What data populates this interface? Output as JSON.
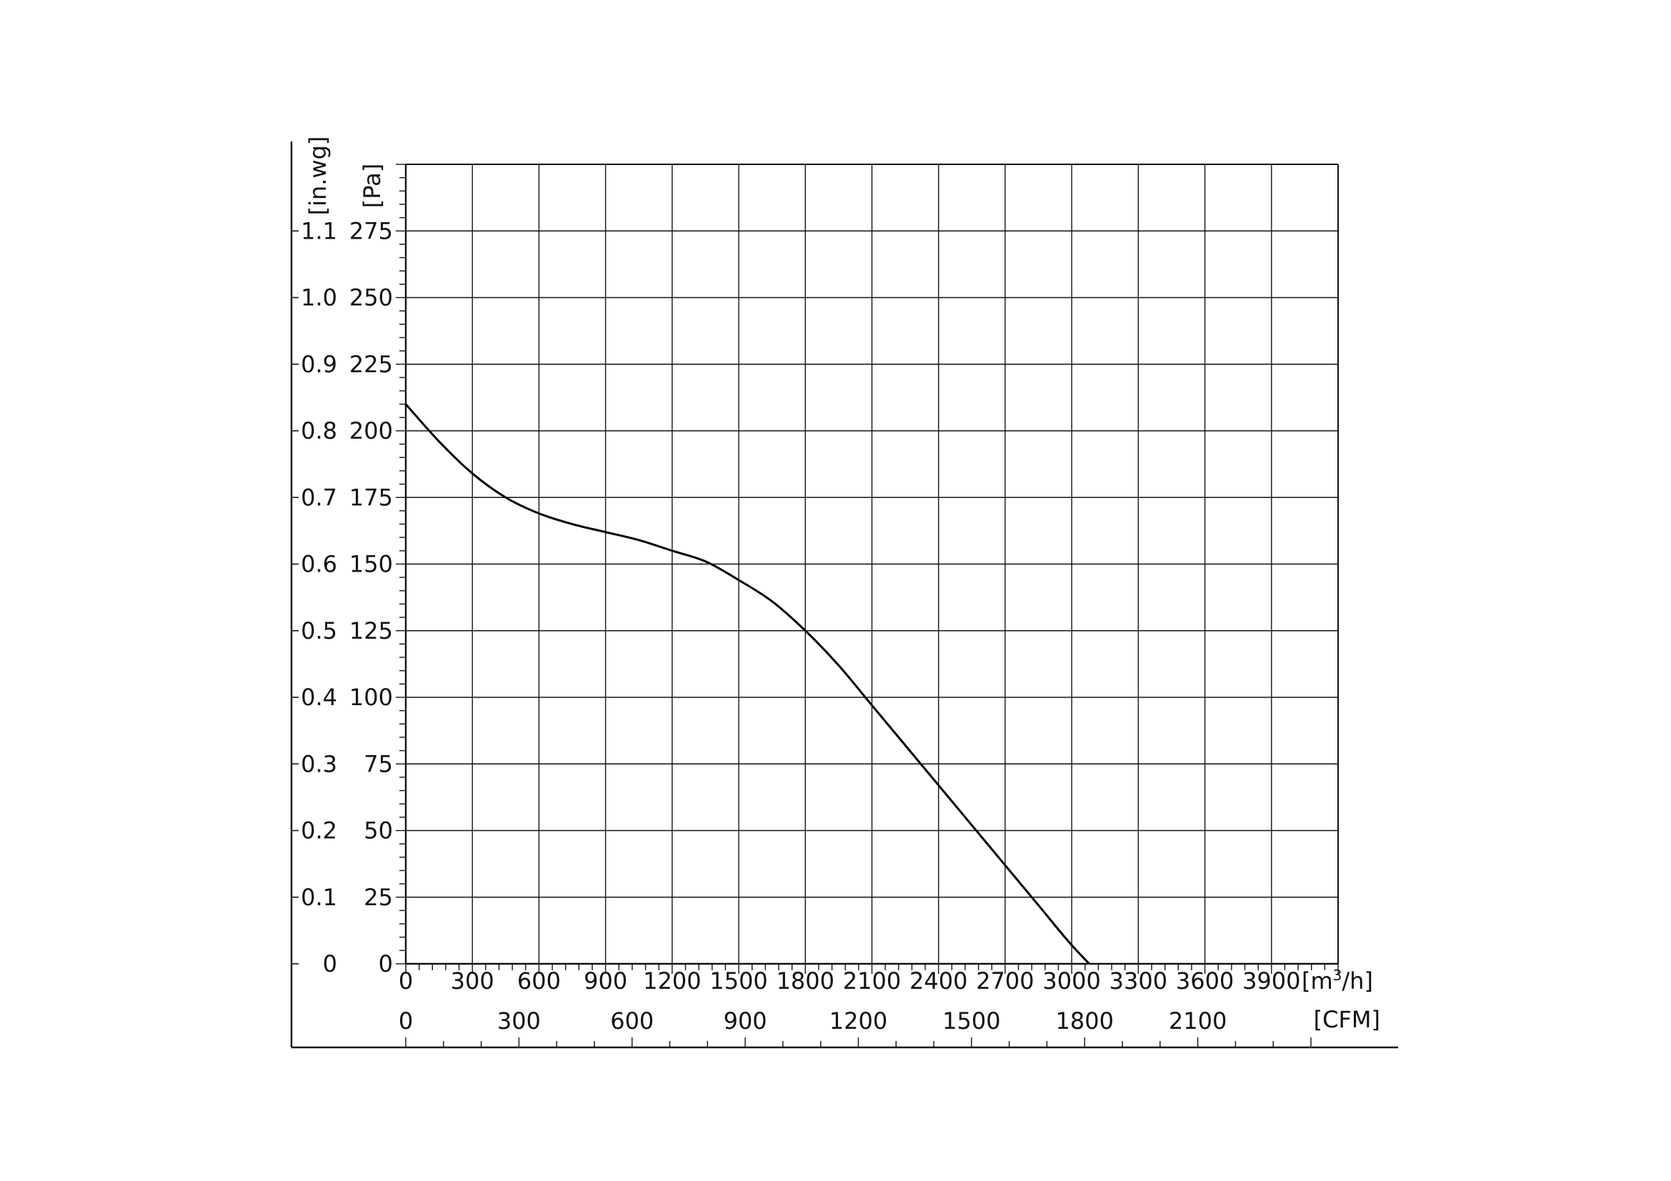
{
  "chart_data": {
    "type": "line",
    "axes": {
      "x_primary": {
        "unit": "[m³/h]",
        "unit_base": "[m",
        "unit_sup": "3",
        "unit_tail": "/h]",
        "range": [
          0,
          4200
        ],
        "ticks": [
          0,
          300,
          600,
          900,
          1200,
          1500,
          1800,
          2100,
          2400,
          2700,
          3000,
          3300,
          3600,
          3900
        ],
        "tick_labels": [
          "0",
          "300",
          "600",
          "900",
          "1200",
          "1500",
          "1800",
          "2100",
          "2400",
          "2700",
          "3000",
          "3300",
          "3600",
          "3900"
        ],
        "minor_step": 60
      },
      "x_secondary": {
        "unit": "[CFM]",
        "range": [
          0,
          2472
        ],
        "ticks": [
          0,
          300,
          600,
          900,
          1200,
          1500,
          1800,
          2100
        ],
        "tick_labels": [
          "0",
          "300",
          "600",
          "900",
          "1200",
          "1500",
          "1800",
          "2100"
        ],
        "minor_step": 100
      },
      "y_primary": {
        "unit": "[Pa]",
        "range": [
          0,
          300
        ],
        "ticks": [
          0,
          25,
          50,
          75,
          100,
          125,
          150,
          175,
          200,
          225,
          250,
          275
        ],
        "tick_labels": [
          "0",
          "25",
          "50",
          "75",
          "100",
          "125",
          "150",
          "175",
          "200",
          "225",
          "250",
          "275"
        ],
        "minor_step": 5
      },
      "y_secondary": {
        "unit": "[in.wg]",
        "ticks": [
          0,
          0.1,
          0.2,
          0.3,
          0.4,
          0.5,
          0.6,
          0.7,
          0.8,
          0.9,
          1.0,
          1.1
        ],
        "tick_labels": [
          "0",
          "0.1",
          "0.2",
          "0.3",
          "0.4",
          "0.5",
          "0.6",
          "0.7",
          "0.8",
          "0.9",
          "1.0",
          "1.1"
        ]
      }
    },
    "grid": true,
    "series": [
      {
        "x": [
          0,
          150,
          300,
          450,
          600,
          750,
          900,
          1050,
          1200,
          1350,
          1500,
          1650,
          1800,
          1950,
          2100,
          2250,
          2400,
          2550,
          2700,
          2850,
          3000,
          3150
        ],
        "y": [
          210,
          196,
          184,
          175,
          169,
          165,
          162,
          159,
          155,
          151,
          144,
          136,
          125,
          112,
          97,
          82,
          67,
          52,
          37,
          22,
          7,
          -6
        ],
        "color": "#000000"
      }
    ]
  }
}
